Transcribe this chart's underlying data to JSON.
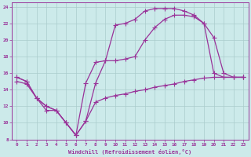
{
  "xlabel": "Windchill (Refroidissement éolien,°C)",
  "xlim": [
    -0.5,
    23.5
  ],
  "ylim": [
    8,
    24.5
  ],
  "xticks": [
    0,
    1,
    2,
    3,
    4,
    5,
    6,
    7,
    8,
    9,
    10,
    11,
    12,
    13,
    14,
    15,
    16,
    17,
    18,
    19,
    20,
    21,
    22,
    23
  ],
  "yticks": [
    8,
    10,
    12,
    14,
    16,
    18,
    20,
    22,
    24
  ],
  "bg_color": "#cceaea",
  "grid_color": "#aacccc",
  "line_color": "#993399",
  "line1_x": [
    0,
    1,
    2,
    3,
    4,
    5,
    6,
    7,
    8,
    9,
    10,
    11,
    12,
    13,
    14,
    15,
    16,
    17,
    18,
    19,
    20,
    21,
    22,
    23
  ],
  "line1_y": [
    15.0,
    14.7,
    13.0,
    11.5,
    11.5,
    10.0,
    8.5,
    10.2,
    12.5,
    13.0,
    13.3,
    13.5,
    13.8,
    14.0,
    14.3,
    14.5,
    14.7,
    15.0,
    15.2,
    15.4,
    15.5,
    15.5,
    15.5,
    15.5
  ],
  "line2_x": [
    0,
    1,
    2,
    3,
    4,
    5,
    6,
    7,
    8,
    9,
    10,
    11,
    12,
    13,
    14,
    15,
    16,
    17,
    18,
    19,
    20,
    21,
    22,
    23
  ],
  "line2_y": [
    15.5,
    15.0,
    13.0,
    12.0,
    11.5,
    10.0,
    8.5,
    14.8,
    17.3,
    17.5,
    17.5,
    17.7,
    18.0,
    20.0,
    21.5,
    22.5,
    23.0,
    23.0,
    22.8,
    22.0,
    16.0,
    15.5,
    15.5,
    15.5
  ],
  "line3_x": [
    0,
    1,
    2,
    3,
    4,
    5,
    6,
    7,
    8,
    9,
    10,
    11,
    12,
    13,
    14,
    15,
    16,
    17,
    18,
    19,
    20,
    21,
    22,
    23
  ],
  "line3_y": [
    15.5,
    15.0,
    13.0,
    12.0,
    11.5,
    10.0,
    8.5,
    10.2,
    14.8,
    17.5,
    21.8,
    22.0,
    22.5,
    23.5,
    23.8,
    23.8,
    23.8,
    23.5,
    23.0,
    22.0,
    20.3,
    16.0,
    15.5,
    15.5
  ]
}
